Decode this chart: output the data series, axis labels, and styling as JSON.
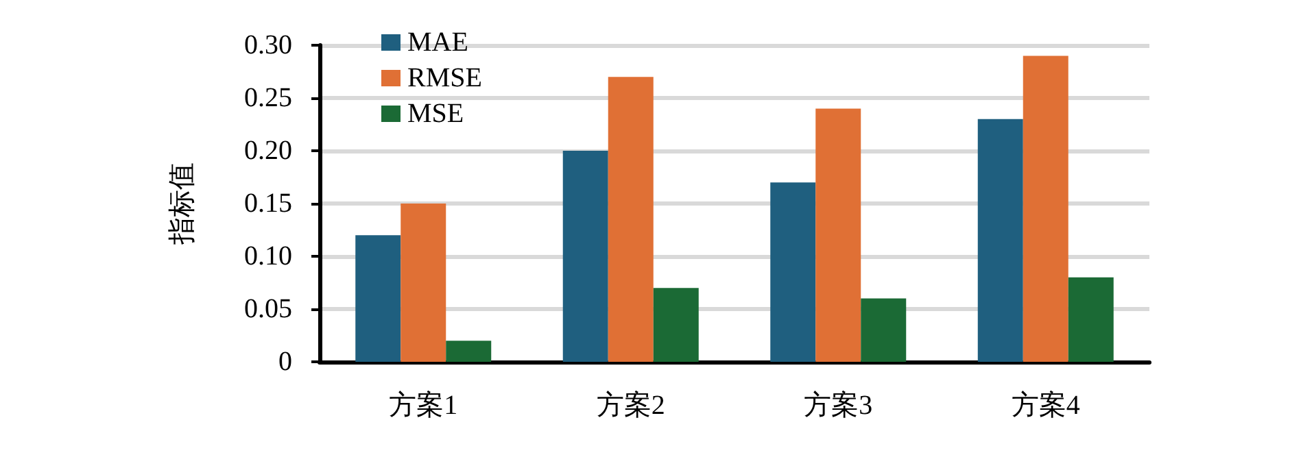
{
  "chart_data": {
    "type": "bar",
    "ylabel": "指标值",
    "categories": [
      "方案1",
      "方案2",
      "方案3",
      "方案4"
    ],
    "series": [
      {
        "name": "MAE",
        "color": "#1f5f7f",
        "values": [
          0.12,
          0.2,
          0.17,
          0.23
        ]
      },
      {
        "name": "RMSE",
        "color": "#e07035",
        "values": [
          0.15,
          0.27,
          0.24,
          0.29
        ]
      },
      {
        "name": "MSE",
        "color": "#1b6a35",
        "values": [
          0.02,
          0.07,
          0.06,
          0.08
        ]
      }
    ],
    "ylim": [
      0,
      0.3
    ],
    "yticks": [
      {
        "value": 0,
        "label": "0"
      },
      {
        "value": 0.05,
        "label": "0.05"
      },
      {
        "value": 0.1,
        "label": "0.10"
      },
      {
        "value": 0.15,
        "label": "0.15"
      },
      {
        "value": 0.2,
        "label": "0.20"
      },
      {
        "value": 0.25,
        "label": "0.25"
      },
      {
        "value": 0.3,
        "label": "0.30"
      }
    ],
    "grid": "y",
    "legend": "top left"
  }
}
